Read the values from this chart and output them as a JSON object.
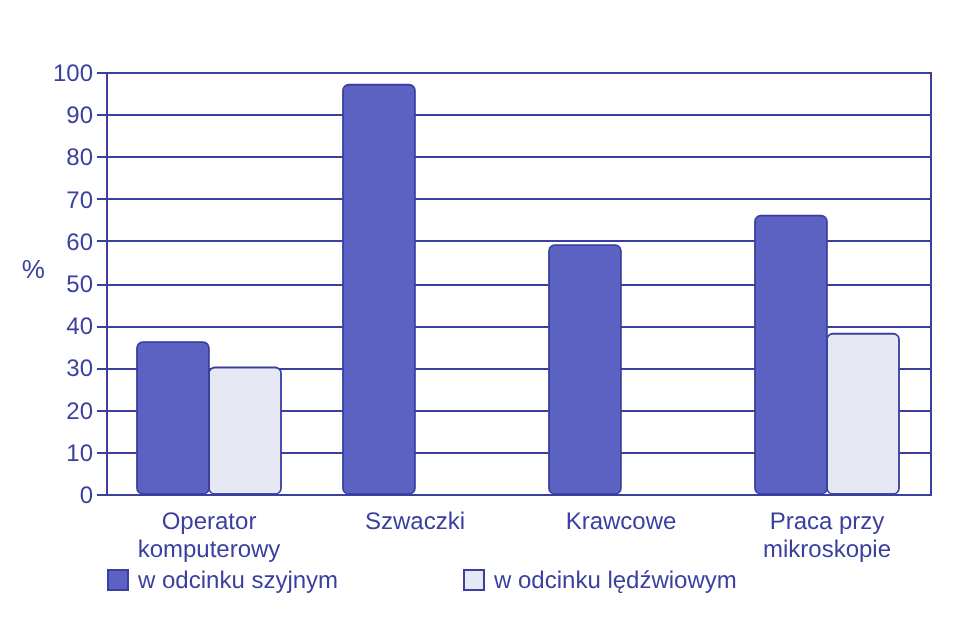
{
  "chart_data": {
    "type": "bar",
    "ylabel": "%",
    "categories": [
      "Operator komputerowy",
      "Szwaczki",
      "Krawcowe",
      "Praca przy mikroskopie"
    ],
    "series": [
      {
        "name": "w odcinku szyjnym",
        "color": "#5b62c2",
        "values": [
          36,
          97,
          59,
          66
        ]
      },
      {
        "name": "w odcinku lędźwiowym",
        "color": "#e6e8f4",
        "values": [
          30,
          null,
          null,
          38
        ]
      }
    ],
    "ylim": [
      0,
      100
    ],
    "yticks": [
      0,
      10,
      20,
      30,
      40,
      50,
      60,
      70,
      80,
      90,
      100
    ],
    "grid": "y",
    "legend": "bottom"
  }
}
